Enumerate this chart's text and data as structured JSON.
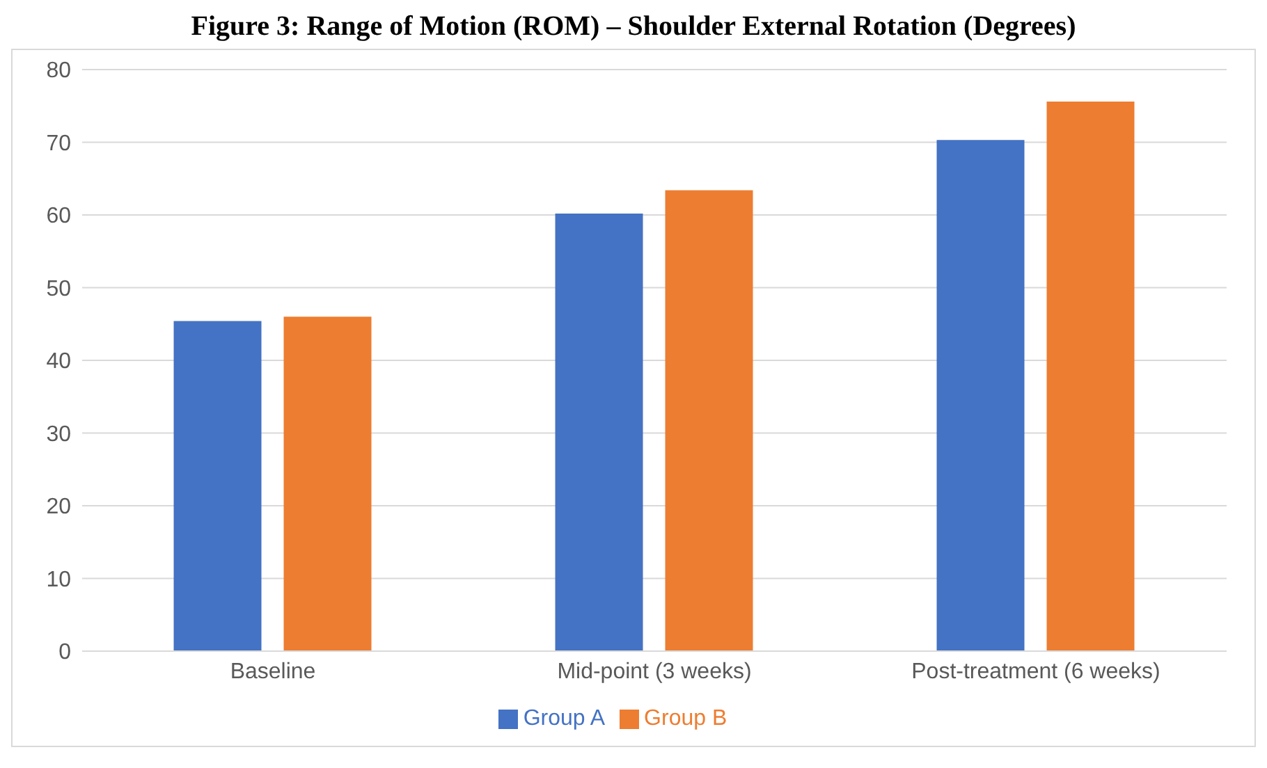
{
  "chart_data": {
    "type": "bar",
    "title": "Figure 3: Range of Motion (ROM) – Shoulder External Rotation (Degrees)",
    "categories": [
      "Baseline",
      "Mid-point (3 weeks)",
      "Post-treatment (6 weeks)"
    ],
    "series": [
      {
        "name": "Group A",
        "color": "#4472c4",
        "values": [
          45.4,
          60.2,
          70.3
        ]
      },
      {
        "name": "Group B",
        "color": "#ed7d31",
        "values": [
          46.0,
          63.4,
          75.6
        ]
      }
    ],
    "ylim": [
      0,
      80
    ],
    "yticks": [
      0,
      10,
      20,
      30,
      40,
      50,
      60,
      70,
      80
    ],
    "grid": "y",
    "legend": "bottom"
  }
}
